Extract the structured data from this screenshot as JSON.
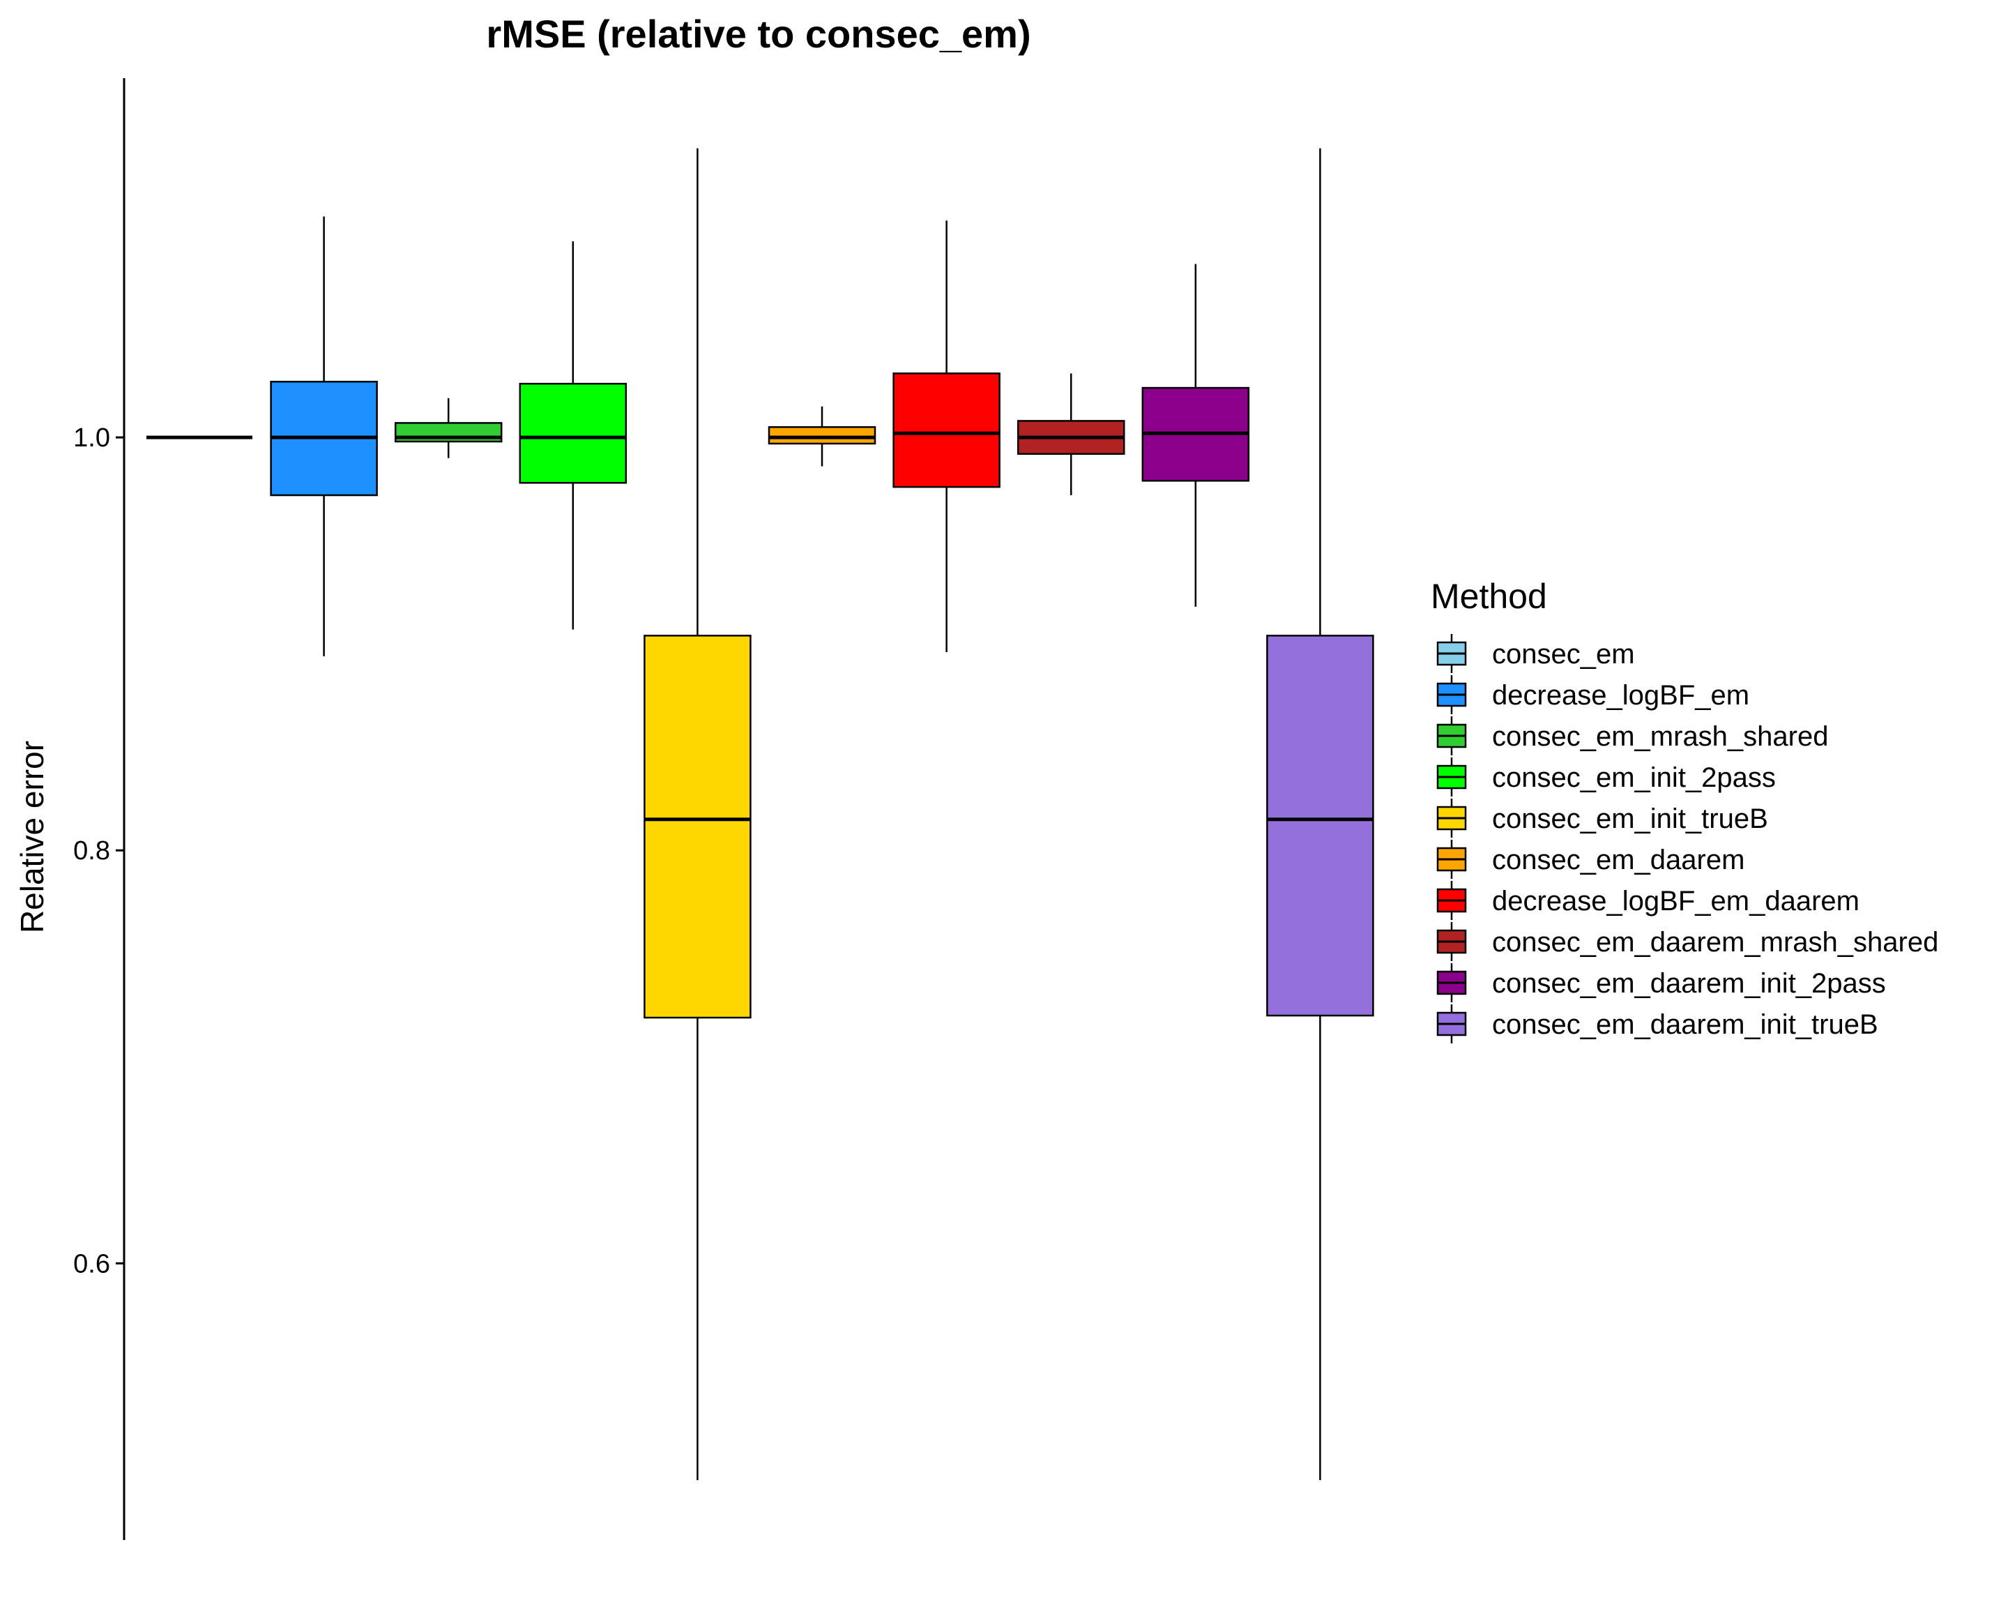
{
  "chart_data": {
    "type": "boxplot",
    "title": "rMSE (relative to consec_em)",
    "xlabel": "",
    "ylabel": "Relative error",
    "ylim": [
      0.466,
      1.174
    ],
    "yticks": [
      0.6,
      0.8,
      1.0
    ],
    "ytick_labels": [
      "0.6",
      "0.8",
      "1.0"
    ],
    "grid": false,
    "legend_title": "Method",
    "legend_position": "right",
    "series": [
      {
        "name": "consec_em",
        "color": "#87CEEB",
        "min": 1.0,
        "q1": 1.0,
        "median": 1.0,
        "q3": 1.0,
        "max": 1.0
      },
      {
        "name": "decrease_logBF_em",
        "color": "#1E90FF",
        "min": 0.894,
        "q1": 0.972,
        "median": 1.0,
        "q3": 1.027,
        "max": 1.107
      },
      {
        "name": "consec_em_mrash_shared",
        "color": "#32CD32",
        "min": 0.99,
        "q1": 0.998,
        "median": 1.0,
        "q3": 1.007,
        "max": 1.019
      },
      {
        "name": "consec_em_init_2pass",
        "color": "#00FF00",
        "min": 0.907,
        "q1": 0.978,
        "median": 1.0,
        "q3": 1.026,
        "max": 1.095
      },
      {
        "name": "consec_em_init_trueB",
        "color": "#FFD700",
        "min": 0.495,
        "q1": 0.719,
        "median": 0.815,
        "q3": 0.904,
        "max": 1.14
      },
      {
        "name": "consec_em_daarem",
        "color": "#FFA500",
        "min": 0.986,
        "q1": 0.997,
        "median": 1.0,
        "q3": 1.005,
        "max": 1.015
      },
      {
        "name": "decrease_logBF_em_daarem",
        "color": "#FF0000",
        "min": 0.896,
        "q1": 0.976,
        "median": 1.002,
        "q3": 1.031,
        "max": 1.105
      },
      {
        "name": "consec_em_daarem_mrash_shared",
        "color": "#B22222",
        "min": 0.972,
        "q1": 0.992,
        "median": 1.0,
        "q3": 1.008,
        "max": 1.031
      },
      {
        "name": "consec_em_daarem_init_2pass",
        "color": "#8B008B",
        "min": 0.918,
        "q1": 0.979,
        "median": 1.002,
        "q3": 1.024,
        "max": 1.084
      },
      {
        "name": "consec_em_daarem_init_trueB",
        "color": "#9370DB",
        "min": 0.495,
        "q1": 0.72,
        "median": 0.815,
        "q3": 0.904,
        "max": 1.14
      }
    ]
  }
}
